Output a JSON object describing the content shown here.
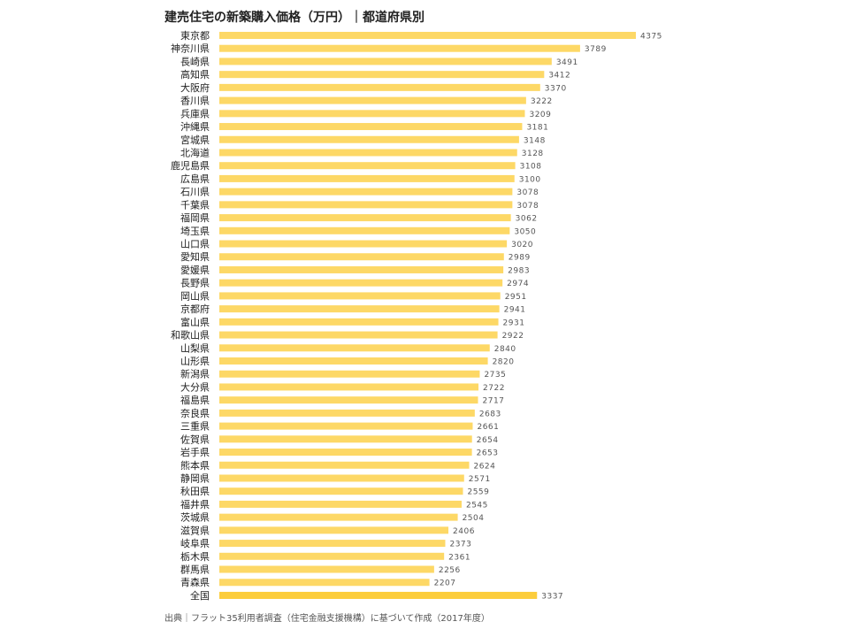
{
  "chart_data": {
    "type": "bar",
    "orientation": "horizontal",
    "title": "建売住宅の新築購入価格（万円）｜都道府県別",
    "xlabel": "",
    "ylabel": "",
    "xlim": [
      0,
      4700
    ],
    "grid": false,
    "legend": "none",
    "colors": {
      "bar": "#fdd866",
      "highlight": "#fccd3c",
      "label": "#222222",
      "value": "#555555"
    },
    "categories": [
      "東京都",
      "神奈川県",
      "長崎県",
      "高知県",
      "大阪府",
      "香川県",
      "兵庫県",
      "沖縄県",
      "宮城県",
      "北海道",
      "鹿児島県",
      "広島県",
      "石川県",
      "千葉県",
      "福岡県",
      "埼玉県",
      "山口県",
      "愛知県",
      "愛媛県",
      "長野県",
      "岡山県",
      "京都府",
      "富山県",
      "和歌山県",
      "山梨県",
      "山形県",
      "新潟県",
      "大分県",
      "福島県",
      "奈良県",
      "三重県",
      "佐賀県",
      "岩手県",
      "熊本県",
      "静岡県",
      "秋田県",
      "福井県",
      "茨城県",
      "滋賀県",
      "岐阜県",
      "栃木県",
      "群馬県",
      "青森県",
      "全国"
    ],
    "values": [
      4375,
      3789,
      3491,
      3412,
      3370,
      3222,
      3209,
      3181,
      3148,
      3128,
      3108,
      3100,
      3078,
      3078,
      3062,
      3050,
      3020,
      2989,
      2983,
      2974,
      2951,
      2941,
      2931,
      2922,
      2840,
      2820,
      2735,
      2722,
      2717,
      2683,
      2661,
      2654,
      2653,
      2624,
      2571,
      2559,
      2545,
      2504,
      2406,
      2373,
      2361,
      2256,
      2207,
      3337
    ],
    "highlight_category": "全国"
  },
  "source": "出典｜フラット35利用者調査（住宅金融支援機構）に基づいて作成（2017年度）"
}
